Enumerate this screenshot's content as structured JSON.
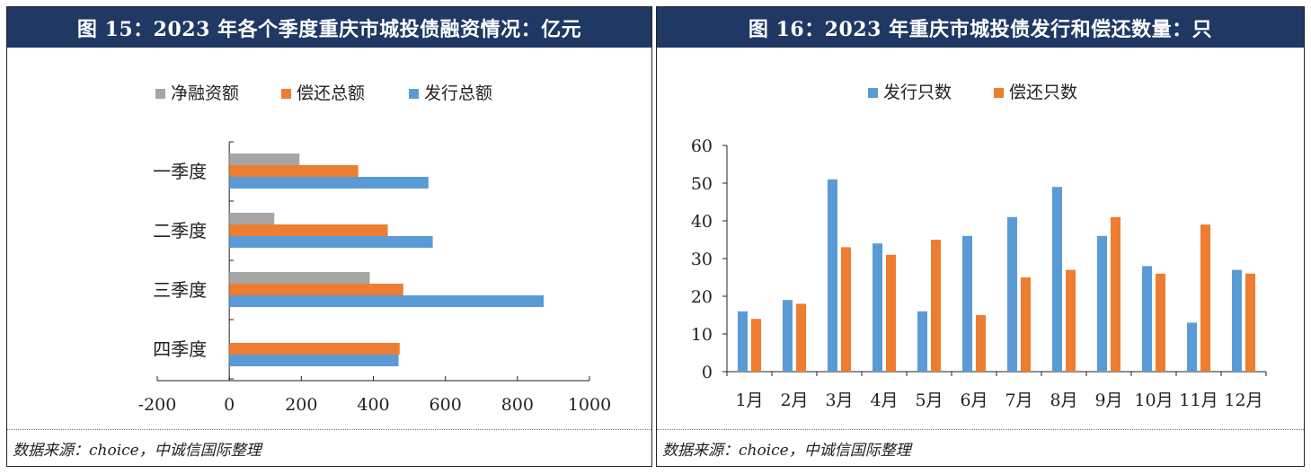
{
  "colors": {
    "header_bg": "#1f3864",
    "blue": "#5b9bd5",
    "orange": "#ed7d31",
    "gray": "#a5a5a5"
  },
  "left": {
    "title": "图 15：2023 年各个季度重庆市城投债融资情况：亿元",
    "source": "数据来源：choice，中诚信国际整理"
  },
  "right": {
    "title": "图 16：2023 年重庆市城投债发行和偿还数量：只",
    "source": "数据来源：choice，中诚信国际整理"
  },
  "chart_data": [
    {
      "type": "bar",
      "orientation": "horizontal",
      "categories": [
        "一季度",
        "二季度",
        "三季度",
        "四季度"
      ],
      "series": [
        {
          "name": "净融资额",
          "color": "#a5a5a5",
          "values": [
            195,
            125,
            390,
            null
          ]
        },
        {
          "name": "偿还总额",
          "color": "#ed7d31",
          "values": [
            358,
            440,
            483,
            473
          ]
        },
        {
          "name": "发行总额",
          "color": "#5b9bd5",
          "values": [
            553,
            565,
            873,
            470
          ]
        }
      ],
      "xlim": [
        -200,
        1000
      ],
      "xticks": [
        -200,
        0,
        200,
        400,
        600,
        800,
        1000
      ],
      "legend": "top"
    },
    {
      "type": "bar",
      "categories": [
        "1月",
        "2月",
        "3月",
        "4月",
        "5月",
        "6月",
        "7月",
        "8月",
        "9月",
        "10月",
        "11月",
        "12月"
      ],
      "series": [
        {
          "name": "发行只数",
          "color": "#5b9bd5",
          "values": [
            16,
            19,
            51,
            34,
            16,
            36,
            41,
            49,
            36,
            28,
            13,
            27
          ]
        },
        {
          "name": "偿还只数",
          "color": "#ed7d31",
          "values": [
            14,
            18,
            33,
            31,
            35,
            15,
            25,
            27,
            41,
            26,
            39,
            26
          ]
        }
      ],
      "ylim": [
        0,
        60
      ],
      "yticks": [
        0,
        10,
        20,
        30,
        40,
        50,
        60
      ],
      "legend": "top"
    }
  ]
}
